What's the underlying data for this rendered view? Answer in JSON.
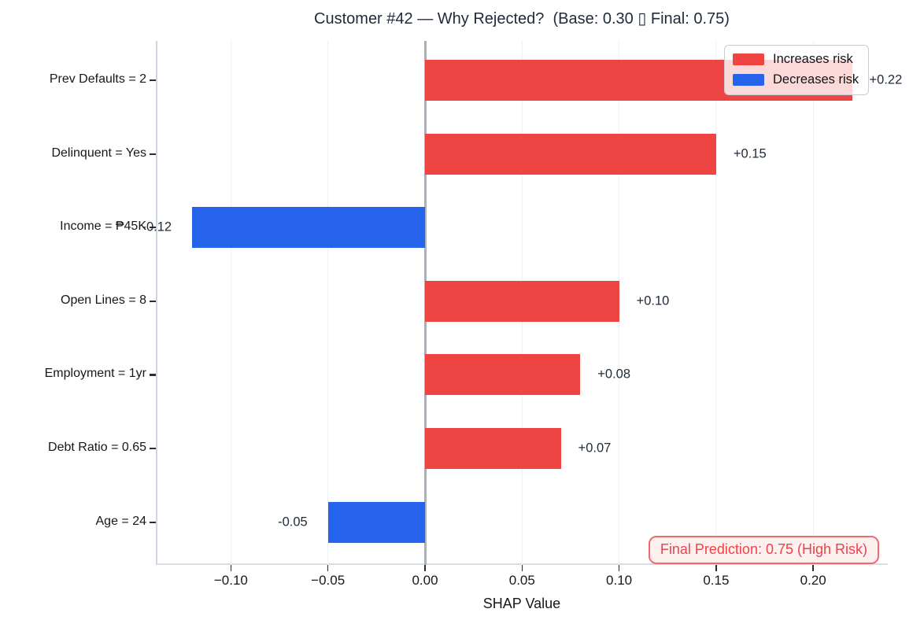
{
  "chart_data": {
    "type": "bar",
    "orientation": "horizontal",
    "title": "Customer #42 — Why Rejected?  (Base: 0.30 ▯ Final: 0.75)",
    "xlabel": "SHAP Value",
    "categories": [
      "Prev Defaults = 2",
      "Delinquent = Yes",
      "Income = ₱45K",
      "Open Lines = 8",
      "Employment = 1yr",
      "Debt Ratio = 0.65",
      "Age = 24"
    ],
    "values": [
      0.22,
      0.15,
      -0.12,
      0.1,
      0.08,
      0.07,
      -0.05
    ],
    "bar_labels": [
      "+0.22",
      "+0.15",
      "-0.12",
      "+0.10",
      "+0.08",
      "+0.07",
      "-0.05"
    ],
    "x_ticks": [
      -0.1,
      -0.05,
      0.0,
      0.05,
      0.1,
      0.15,
      0.2
    ],
    "x_tick_labels": [
      "−0.10",
      "−0.05",
      "0.00",
      "0.05",
      "0.10",
      "0.15",
      "0.20"
    ],
    "xlim": [
      -0.139,
      0.237
    ],
    "grid": "vertical-light",
    "colors": {
      "increase": "#ef4444",
      "decrease": "#2563eb",
      "zero_line": "#a8b0bc",
      "grid_line": "#f0f2f5",
      "spine": "#d6dde7",
      "dark_text": "#1e2a3a"
    },
    "legend": {
      "position": "upper-right",
      "entries": [
        {
          "label": "Increases risk",
          "color": "#ef4444"
        },
        {
          "label": "Decreases risk",
          "color": "#2563eb"
        }
      ]
    },
    "annotation": {
      "text": "Final Prediction: 0.75 (High Risk)",
      "text_color": "#ee4248",
      "bg_color": "#fdf0ef",
      "border_color": "#f16a6e"
    }
  }
}
